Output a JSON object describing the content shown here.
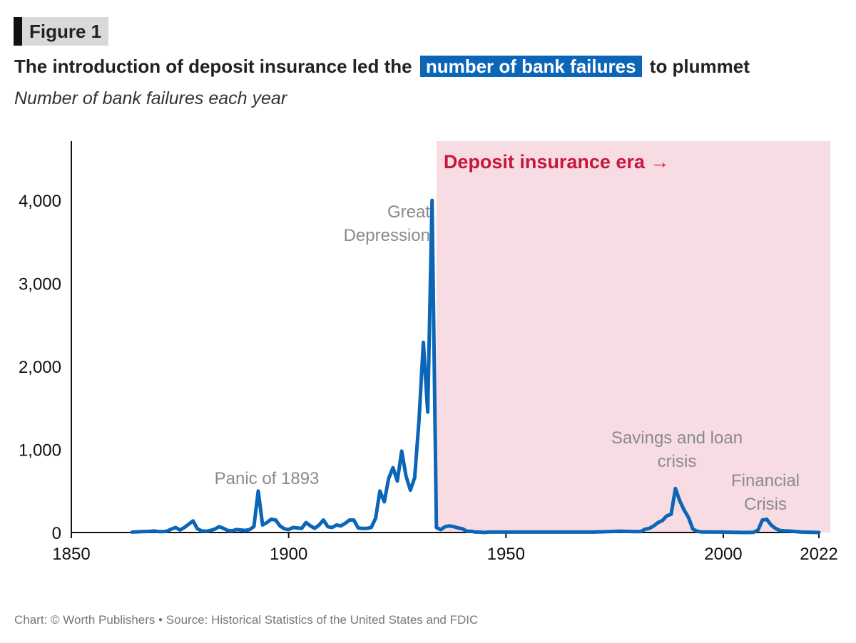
{
  "figure_label": "Figure 1",
  "title": {
    "before": "The introduction of deposit insurance led the",
    "highlight": "number of bank failures",
    "after": "to plummet"
  },
  "subtitle": "Number of bank failures each year",
  "footer": "Chart: © Worth Publishers • Source: Historical Statistics of the United States and FDIC",
  "colors": {
    "line": "#0b66b8",
    "shade": "#f7dde3",
    "era_label": "#c8163e",
    "annotation": "#8a8a8a"
  },
  "chart_data": {
    "type": "line",
    "xlim": [
      1850,
      2022
    ],
    "ylim": [
      0,
      4000
    ],
    "x_ticks": [
      "1850",
      "1900",
      "1950",
      "2000",
      "2022"
    ],
    "y_ticks": [
      "0",
      "1,000",
      "2,000",
      "3,000",
      "4,000"
    ],
    "shaded_region": {
      "from": 1934,
      "to": 2022,
      "label": "Deposit insurance era →"
    },
    "annotations": [
      {
        "text": "Panic of 1893",
        "x": 1893
      },
      {
        "text": "Great Depression",
        "x": 1933
      },
      {
        "text": "Savings and loan crisis",
        "x": 1988
      },
      {
        "text": "Financial Crisis",
        "x": 2009
      }
    ],
    "series": [
      {
        "x": [
          1864,
          1865,
          1866,
          1867,
          1868,
          1869,
          1870,
          1871,
          1872,
          1873,
          1874,
          1875,
          1876,
          1877,
          1878,
          1879,
          1880,
          1881,
          1882,
          1883,
          1884,
          1885,
          1886,
          1887,
          1888,
          1889,
          1890,
          1891,
          1892,
          1893,
          1894,
          1895,
          1896,
          1897,
          1898,
          1899,
          1900,
          1901,
          1902,
          1903,
          1904,
          1905,
          1906,
          1907,
          1908,
          1909,
          1910,
          1911,
          1912,
          1913,
          1914,
          1915,
          1916,
          1917,
          1918,
          1919,
          1920,
          1921,
          1922,
          1923,
          1924,
          1925,
          1926,
          1927,
          1928,
          1929,
          1930,
          1931,
          1932,
          1933,
          1934,
          1935,
          1936,
          1937,
          1938,
          1939,
          1940,
          1941,
          1942,
          1943,
          1944,
          1945,
          1946,
          1950,
          1955,
          1960,
          1965,
          1970,
          1975,
          1976,
          1980,
          1981,
          1982,
          1983,
          1984,
          1985,
          1986,
          1987,
          1988,
          1989,
          1990,
          1991,
          1992,
          1993,
          1994,
          1995,
          2000,
          2005,
          2007,
          2008,
          2009,
          2010,
          2011,
          2012,
          2013,
          2014,
          2015,
          2018,
          2022
        ],
        "values": [
          5,
          8,
          10,
          12,
          14,
          18,
          12,
          10,
          16,
          40,
          60,
          30,
          60,
          100,
          140,
          45,
          20,
          15,
          25,
          40,
          70,
          50,
          25,
          20,
          35,
          30,
          25,
          35,
          70,
          500,
          90,
          120,
          160,
          150,
          80,
          45,
          35,
          60,
          55,
          50,
          120,
          80,
          50,
          90,
          150,
          70,
          60,
          90,
          80,
          110,
          150,
          150,
          55,
          50,
          50,
          60,
          170,
          500,
          370,
          650,
          780,
          620,
          980,
          680,
          510,
          660,
          1350,
          2290,
          1450,
          4000,
          60,
          35,
          70,
          80,
          70,
          55,
          45,
          15,
          15,
          5,
          5,
          0,
          5,
          5,
          5,
          5,
          5,
          5,
          13,
          16,
          10,
          10,
          40,
          50,
          80,
          120,
          145,
          200,
          220,
          530,
          380,
          270,
          180,
          40,
          15,
          6,
          5,
          0,
          3,
          30,
          150,
          160,
          90,
          50,
          25,
          20,
          18,
          5,
          0
        ]
      }
    ]
  }
}
